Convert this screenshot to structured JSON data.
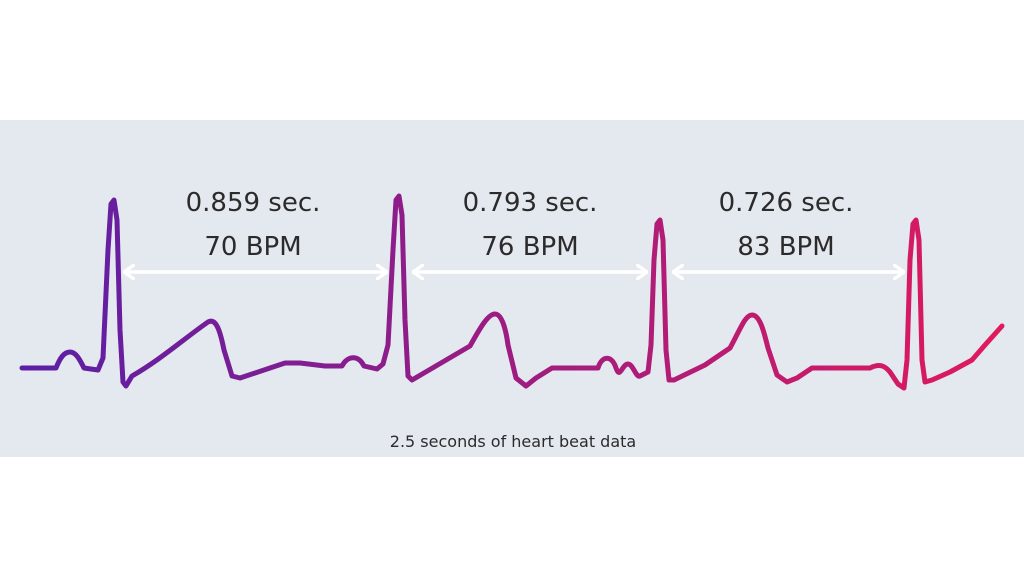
{
  "intervals": [
    {
      "duration": "0.859 sec.",
      "rate": "70 BPM"
    },
    {
      "duration": "0.793 sec.",
      "rate": "76 BPM"
    },
    {
      "duration": "0.726 sec.",
      "rate": "83 BPM"
    }
  ],
  "caption": "2.5 seconds of heart beat data",
  "colors": {
    "trace_start": "#5b1fa6",
    "trace_end": "#e01a5c",
    "arrow": "#ffffff",
    "panel_background": "#e4e8ef",
    "text": "#2b2b2b"
  }
}
